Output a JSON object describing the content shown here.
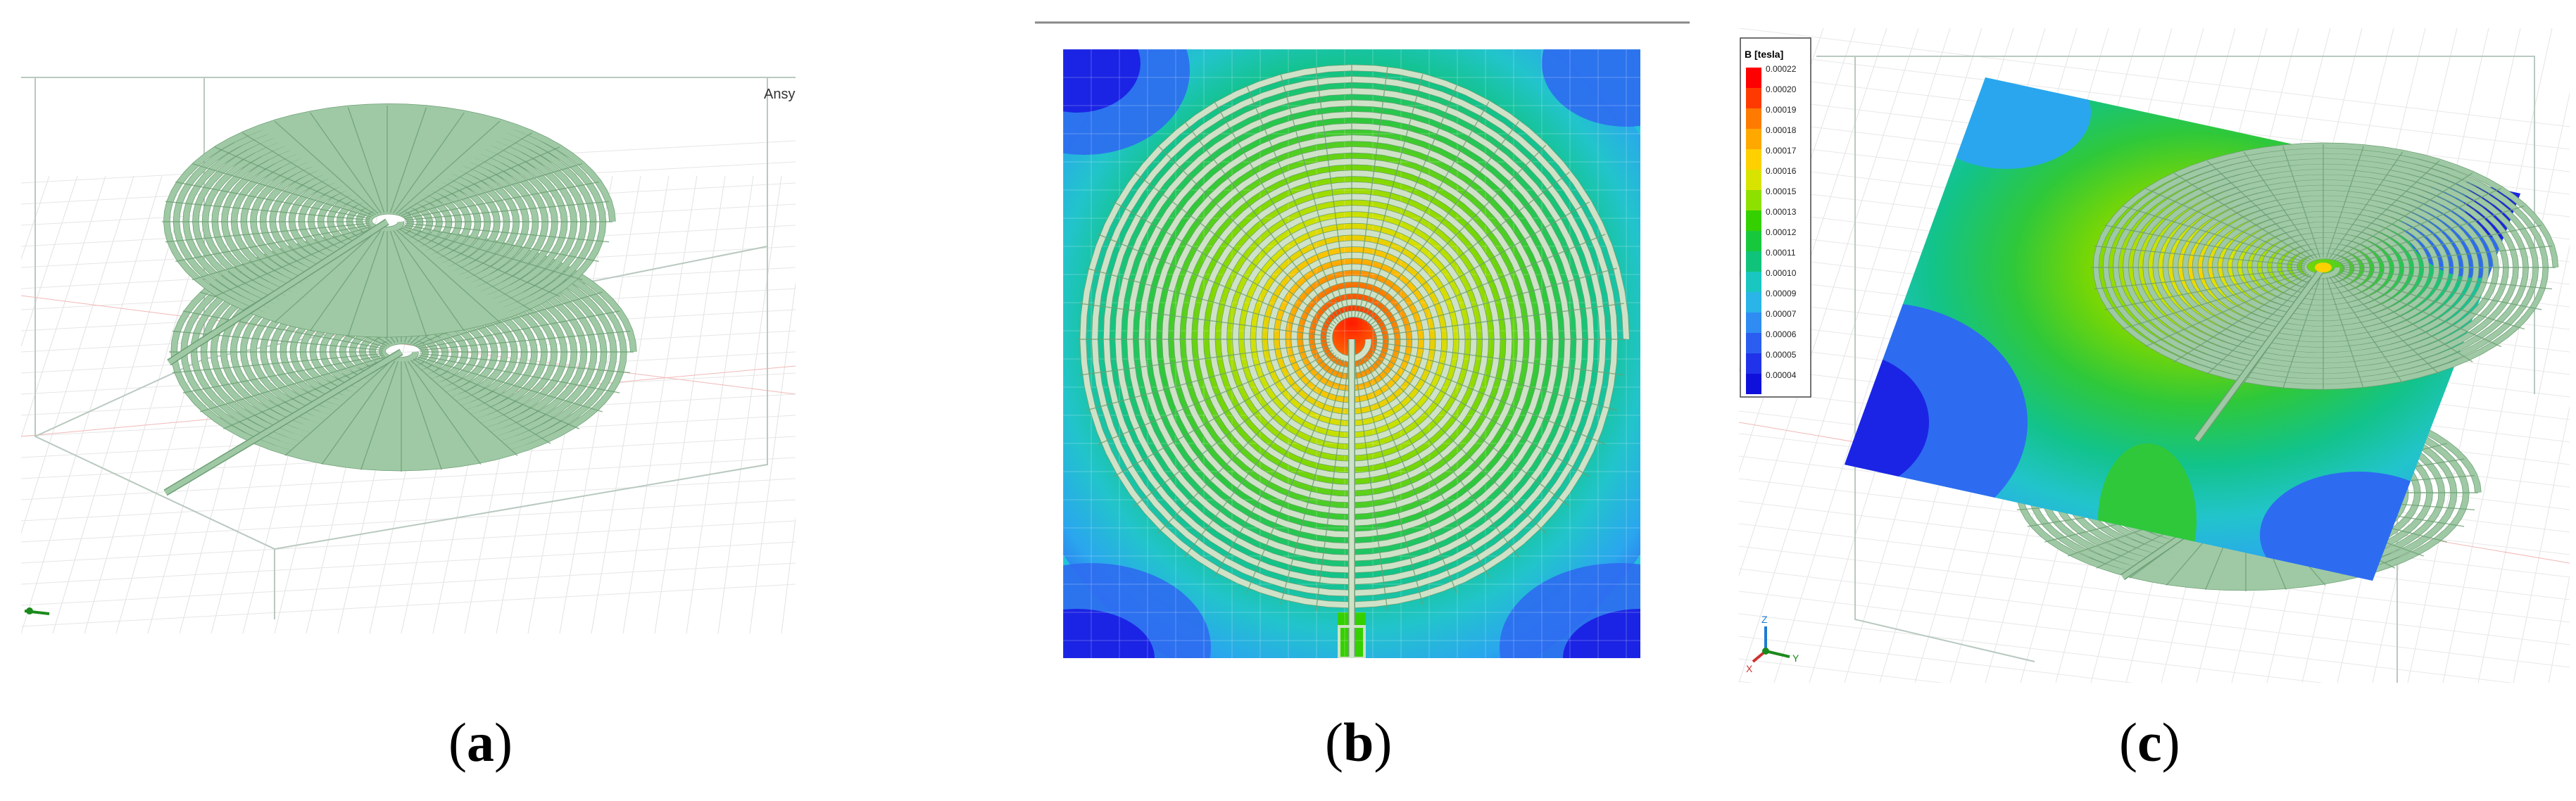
{
  "panels": {
    "a": {
      "watermark": "Ansys",
      "caption_open": "(",
      "caption_letter": "a",
      "caption_close": ")"
    },
    "b": {
      "caption_open": "(",
      "caption_letter": "b",
      "caption_close": ")"
    },
    "c": {
      "caption_open": "(",
      "caption_letter": "c",
      "caption_close": ")",
      "legend_title": "B [tesla]",
      "legend_values": [
        "0.00022",
        "0.00020",
        "0.00019",
        "0.00018",
        "0.00017",
        "0.00016",
        "0.00015",
        "0.00013",
        "0.00012",
        "0.00011",
        "0.00010",
        "0.00009",
        "0.00007",
        "0.00006",
        "0.00005",
        "0.00004"
      ],
      "axis_labels": [
        "Z",
        "X",
        "Y"
      ]
    }
  },
  "colors": {
    "coil": "#9fc9a5",
    "coil_edge": "#6d9f74",
    "legend": [
      "#ff0000",
      "#ff3a00",
      "#ff7a00",
      "#ffa800",
      "#ffd000",
      "#d8e400",
      "#8ee000",
      "#34d000",
      "#18c83c",
      "#10c37a",
      "#19c6c0",
      "#2ab4e8",
      "#2f8cf2",
      "#2b5ef0",
      "#2133ea",
      "#1010dd"
    ]
  }
}
